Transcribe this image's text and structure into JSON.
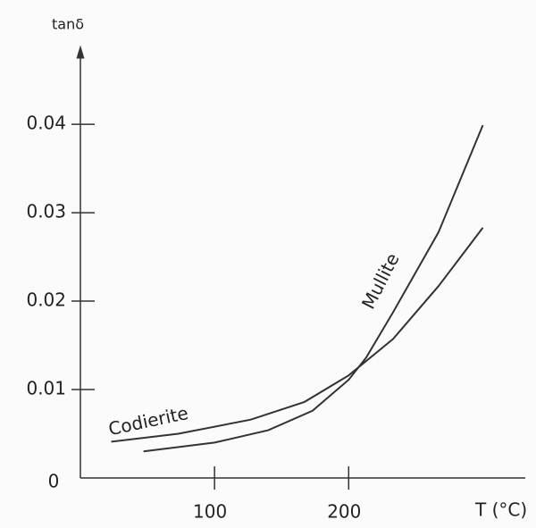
{
  "chart_data": {
    "type": "line",
    "y_label": "tanδ",
    "x_label": "T (°C)",
    "xlim": [
      0,
      333
    ],
    "ylim": [
      0,
      0.0485
    ],
    "xticks": [
      100,
      200
    ],
    "yticks": [
      0,
      0.01,
      0.02,
      0.03,
      0.04
    ],
    "series": [
      {
        "name": "Codierite",
        "color": "#333333",
        "x": [
          23,
          73,
          127,
          167,
          200,
          233,
          267,
          300
        ],
        "values": [
          0.0041,
          0.005,
          0.0066,
          0.0086,
          0.0116,
          0.0157,
          0.0217,
          0.0283
        ]
      },
      {
        "name": "Mullite",
        "color": "#333333",
        "x": [
          47,
          100,
          140,
          173,
          200,
          213,
          233,
          267,
          300
        ],
        "values": [
          0.003,
          0.004,
          0.0054,
          0.0076,
          0.0111,
          0.0136,
          0.0187,
          0.0278,
          0.0399
        ]
      }
    ]
  }
}
